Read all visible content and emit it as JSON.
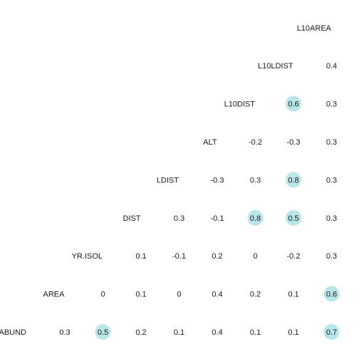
{
  "chart_data": {
    "type": "heatmap",
    "variables": [
      "ABUND",
      "AREA",
      "YR.ISOL",
      "DIST",
      "LDIST",
      "ALT",
      "L10DIST",
      "L10LDIST",
      "L10AREA"
    ],
    "correlations": [
      {
        "row": "ABUND",
        "values": [
          0.3,
          0.5,
          0.2,
          0.1,
          0.4,
          0.1,
          0.1,
          0.7
        ]
      },
      {
        "row": "AREA",
        "values": [
          0,
          0.1,
          0,
          0.4,
          0.2,
          0.1,
          0.6
        ]
      },
      {
        "row": "YR.ISOL",
        "values": [
          0.1,
          -0.1,
          0.2,
          0,
          -0.2,
          0.3
        ]
      },
      {
        "row": "DIST",
        "values": [
          0.3,
          -0.1,
          0.8,
          0.5,
          0.3
        ]
      },
      {
        "row": "LDIST",
        "values": [
          -0.3,
          0.3,
          0.8,
          0.3
        ]
      },
      {
        "row": "ALT",
        "values": [
          -0.2,
          -0.3,
          0.3
        ]
      },
      {
        "row": "L10DIST",
        "values": [
          0.6,
          0.3
        ]
      },
      {
        "row": "L10LDIST",
        "values": [
          0.4
        ]
      },
      {
        "row": "L10AREA",
        "values": []
      }
    ],
    "highlight_threshold": 0.5,
    "highlight_color": "#b9e6e8",
    "text_color": "#1a1a1a",
    "layout": "lower-triangle, variable names on diagonal"
  }
}
